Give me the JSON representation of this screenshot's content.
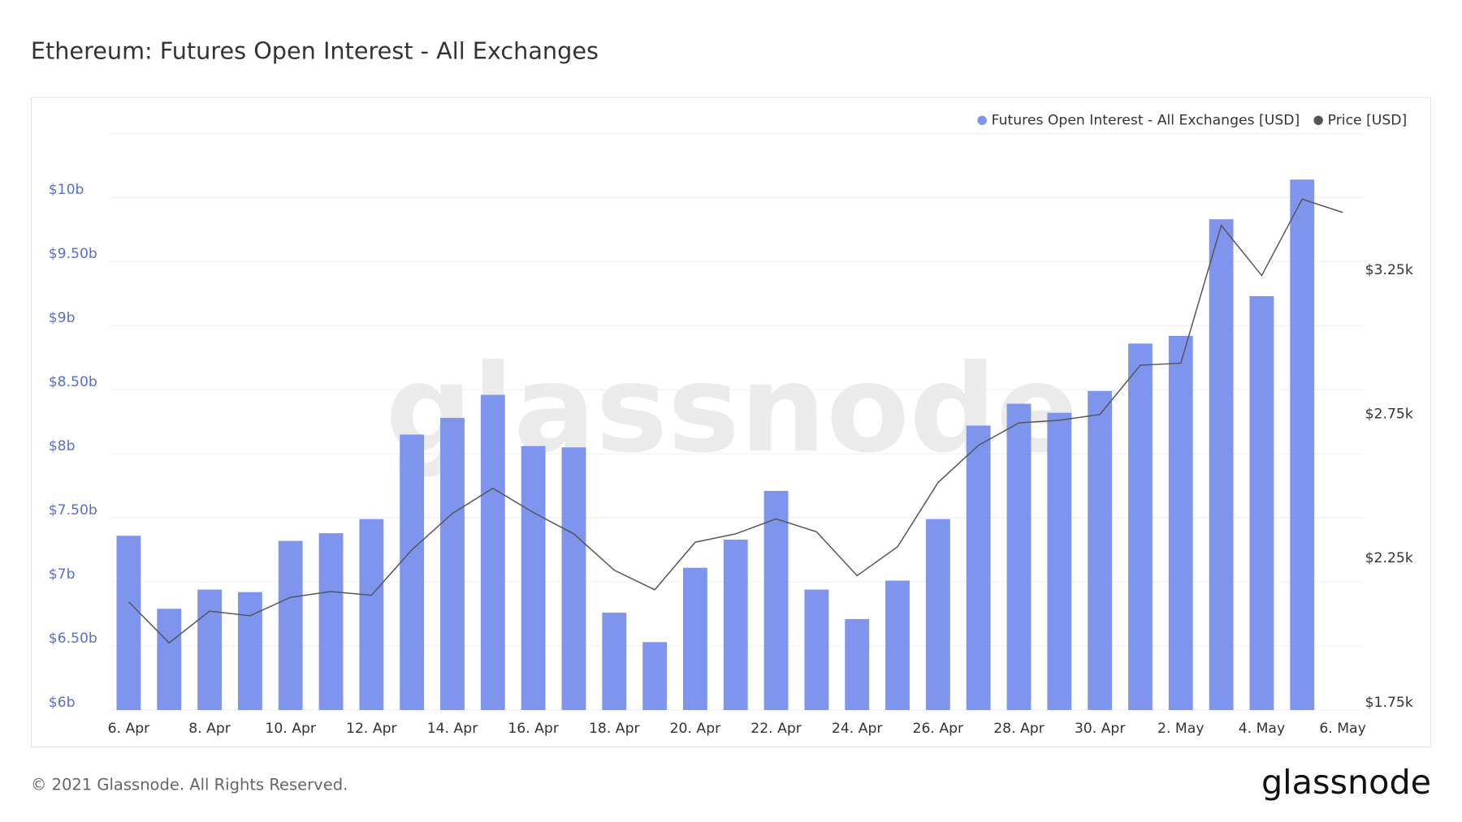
{
  "chart_data": {
    "type": "bar",
    "title": "Ethereum: Futures Open Interest - All Exchanges",
    "watermark": "glassnode",
    "footer": {
      "copyright": "© 2021 Glassnode. All Rights Reserved.",
      "logo": "glassnode"
    },
    "categories": [
      "6. Apr",
      null,
      "8. Apr",
      null,
      "10. Apr",
      null,
      "12. Apr",
      null,
      "14. Apr",
      null,
      "16. Apr",
      null,
      "18. Apr",
      null,
      "20. Apr",
      null,
      "22. Apr",
      null,
      "24. Apr",
      null,
      "26. Apr",
      null,
      "28. Apr",
      null,
      "30. Apr",
      null,
      "2. May",
      null,
      "4. May",
      null,
      "6. May"
    ],
    "series": [
      {
        "name": "Futures Open Interest - All Exchanges [USD]",
        "color": "#7f95ed",
        "type": "bar",
        "axis": "y",
        "values": [
          7360000000,
          6790000000,
          6940000000,
          6920000000,
          7320000000,
          7380000000,
          7490000000,
          8150000000,
          8280000000,
          8460000000,
          8060000000,
          8050000000,
          6760000000,
          6530000000,
          7110000000,
          7330000000,
          7710000000,
          6940000000,
          6710000000,
          7010000000,
          7490000000,
          8220000000,
          8390000000,
          8320000000,
          8490000000,
          8860000000,
          8920000000,
          9830000000,
          9230000000,
          10140000000,
          null
        ]
      },
      {
        "name": "Price [USD]",
        "color": "#555555",
        "type": "line",
        "axis": "y2",
        "values": [
          2125,
          1983,
          2093,
          2077,
          2141,
          2161,
          2148,
          2306,
          2432,
          2519,
          2435,
          2361,
          2235,
          2167,
          2332,
          2361,
          2413,
          2368,
          2216,
          2316,
          2539,
          2668,
          2746,
          2755,
          2775,
          2946,
          2953,
          3431,
          3257,
          3522,
          3476
        ]
      }
    ],
    "ylim": [
      6000000000,
      10500000000
    ],
    "yticks": [
      {
        "value": 6000000000,
        "label": "$6b"
      },
      {
        "value": 6500000000,
        "label": "$6.50b"
      },
      {
        "value": 7000000000,
        "label": "$7b"
      },
      {
        "value": 7500000000,
        "label": "$7.50b"
      },
      {
        "value": 8000000000,
        "label": "$8b"
      },
      {
        "value": 8500000000,
        "label": "$8.50b"
      },
      {
        "value": 9000000000,
        "label": "$9b"
      },
      {
        "value": 9500000000,
        "label": "$9.50b"
      },
      {
        "value": 10000000000,
        "label": "$10b"
      }
    ],
    "y2lim": [
      1750,
      3750
    ],
    "y2ticks": [
      {
        "value": 1750,
        "label": "$1.75k"
      },
      {
        "value": 2250,
        "label": "$2.25k"
      },
      {
        "value": 2750,
        "label": "$2.75k"
      },
      {
        "value": 3250,
        "label": "$3.25k"
      }
    ],
    "grid": true,
    "legend": "top-right"
  }
}
